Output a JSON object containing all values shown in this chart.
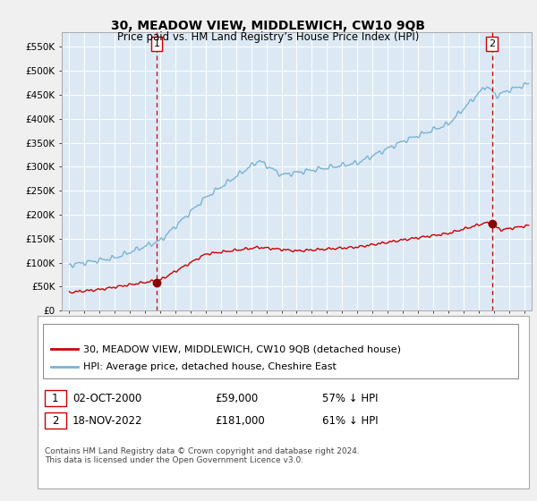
{
  "title": "30, MEADOW VIEW, MIDDLEWICH, CW10 9QB",
  "subtitle": "Price paid vs. HM Land Registry’s House Price Index (HPI)",
  "hpi_color": "#7ab3d4",
  "price_color": "#cc0000",
  "dot_color": "#8b0000",
  "vline_color": "#cc0000",
  "bg_color": "#dce9f5",
  "grid_color": "#ffffff",
  "fig_bg": "#f0f0f0",
  "panel_bg": "#ffffff",
  "ylim": [
    0,
    580000
  ],
  "yticks": [
    0,
    50000,
    100000,
    150000,
    200000,
    250000,
    300000,
    350000,
    400000,
    450000,
    500000,
    550000
  ],
  "ytick_labels": [
    "£0",
    "£50K",
    "£100K",
    "£150K",
    "£200K",
    "£250K",
    "£300K",
    "£350K",
    "£400K",
    "£450K",
    "£500K",
    "£550K"
  ],
  "xmin_year": 1994.5,
  "xmax_year": 2025.5,
  "xtick_years": [
    1995,
    1996,
    1997,
    1998,
    1999,
    2000,
    2001,
    2002,
    2003,
    2004,
    2005,
    2006,
    2007,
    2008,
    2009,
    2010,
    2011,
    2012,
    2013,
    2014,
    2015,
    2016,
    2017,
    2018,
    2019,
    2020,
    2021,
    2022,
    2023,
    2024,
    2025
  ],
  "sale1_x": 2000.75,
  "sale1_y": 59000,
  "sale2_x": 2022.88,
  "sale2_y": 181000,
  "legend_line1": "30, MEADOW VIEW, MIDDLEWICH, CW10 9QB (detached house)",
  "legend_line2": "HPI: Average price, detached house, Cheshire East",
  "table_row1_num": "1",
  "table_row1_date": "02-OCT-2000",
  "table_row1_price": "£59,000",
  "table_row1_hpi": "57% ↓ HPI",
  "table_row2_num": "2",
  "table_row2_date": "18-NOV-2022",
  "table_row2_price": "£181,000",
  "table_row2_hpi": "61% ↓ HPI",
  "footer": "Contains HM Land Registry data © Crown copyright and database right 2024.\nThis data is licensed under the Open Government Licence v3.0."
}
